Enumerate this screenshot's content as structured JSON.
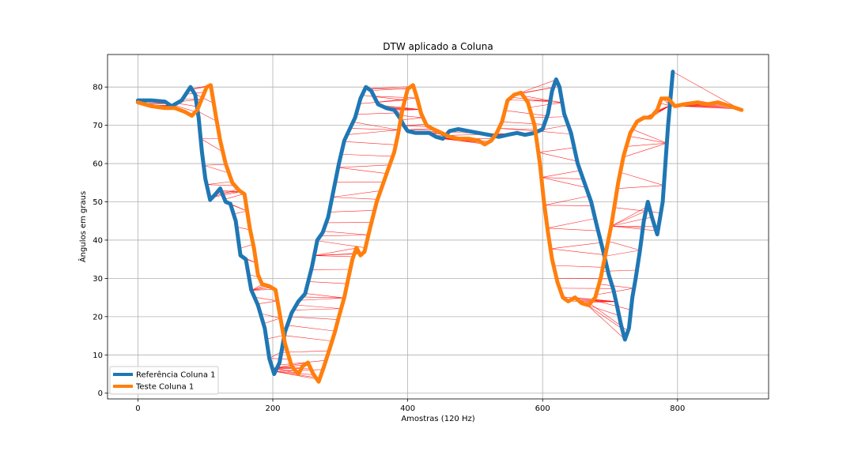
{
  "chart_data": {
    "type": "line",
    "title": "DTW aplicado a Coluna",
    "xlabel": "Amostras (120 Hz)",
    "ylabel": "Ângulos em graus",
    "xlim": [
      -45,
      935
    ],
    "ylim": [
      -1.5,
      88.5
    ],
    "xticks": [
      0,
      200,
      400,
      600,
      800
    ],
    "yticks": [
      0,
      10,
      20,
      30,
      40,
      50,
      60,
      70,
      80
    ],
    "grid": true,
    "legend_position": "lower-left",
    "series": [
      {
        "name": "Referência Coluna 1",
        "color": "#1f77b4",
        "points": [
          [
            0,
            76.5
          ],
          [
            20,
            76.5
          ],
          [
            40,
            76.2
          ],
          [
            50,
            75
          ],
          [
            65,
            76.5
          ],
          [
            78,
            80
          ],
          [
            85,
            78
          ],
          [
            90,
            72
          ],
          [
            95,
            63
          ],
          [
            100,
            56
          ],
          [
            107,
            50.5
          ],
          [
            115,
            52
          ],
          [
            122,
            53.5
          ],
          [
            130,
            50
          ],
          [
            137,
            49.5
          ],
          [
            145,
            45
          ],
          [
            152,
            36
          ],
          [
            160,
            35
          ],
          [
            168,
            27
          ],
          [
            178,
            23
          ],
          [
            188,
            17
          ],
          [
            195,
            9
          ],
          [
            202,
            5
          ],
          [
            210,
            8
          ],
          [
            218,
            16
          ],
          [
            228,
            21
          ],
          [
            238,
            24
          ],
          [
            248,
            26
          ],
          [
            258,
            33
          ],
          [
            266,
            40
          ],
          [
            274,
            42
          ],
          [
            282,
            46
          ],
          [
            290,
            53
          ],
          [
            298,
            60
          ],
          [
            306,
            66
          ],
          [
            314,
            69
          ],
          [
            322,
            72
          ],
          [
            330,
            77
          ],
          [
            338,
            80
          ],
          [
            346,
            79
          ],
          [
            356,
            75.5
          ],
          [
            368,
            74.5
          ],
          [
            380,
            74
          ],
          [
            388,
            72
          ],
          [
            394,
            70
          ],
          [
            400,
            68.5
          ],
          [
            412,
            68
          ],
          [
            422,
            68
          ],
          [
            432,
            68
          ],
          [
            442,
            67
          ],
          [
            452,
            66.5
          ],
          [
            462,
            68.5
          ],
          [
            475,
            69
          ],
          [
            490,
            68.5
          ],
          [
            505,
            68
          ],
          [
            520,
            67.5
          ],
          [
            535,
            67
          ],
          [
            548,
            67.5
          ],
          [
            562,
            68
          ],
          [
            574,
            67.5
          ],
          [
            588,
            68
          ],
          [
            600,
            69
          ],
          [
            608,
            73
          ],
          [
            614,
            79
          ],
          [
            620,
            82
          ],
          [
            625,
            80
          ],
          [
            632,
            73
          ],
          [
            642,
            68
          ],
          [
            652,
            60
          ],
          [
            662,
            55
          ],
          [
            672,
            50
          ],
          [
            680,
            44
          ],
          [
            690,
            37
          ],
          [
            698,
            31
          ],
          [
            705,
            27
          ],
          [
            710,
            23
          ],
          [
            716,
            18
          ],
          [
            722,
            14
          ],
          [
            728,
            17
          ],
          [
            733,
            25
          ],
          [
            738,
            30
          ],
          [
            744,
            37
          ],
          [
            750,
            45
          ],
          [
            756,
            50
          ],
          [
            762,
            46
          ],
          [
            770,
            41.5
          ],
          [
            778,
            50
          ],
          [
            786,
            70
          ],
          [
            793,
            84
          ]
        ]
      },
      {
        "name": "Teste Coluna 1",
        "color": "#ff7f0e",
        "points": [
          [
            0,
            76
          ],
          [
            20,
            75
          ],
          [
            40,
            74.5
          ],
          [
            55,
            74.5
          ],
          [
            70,
            73.5
          ],
          [
            80,
            72.5
          ],
          [
            88,
            74
          ],
          [
            95,
            77
          ],
          [
            102,
            80
          ],
          [
            108,
            80.5
          ],
          [
            115,
            73
          ],
          [
            122,
            66
          ],
          [
            130,
            60
          ],
          [
            140,
            55
          ],
          [
            150,
            53
          ],
          [
            158,
            52
          ],
          [
            166,
            43
          ],
          [
            172,
            38
          ],
          [
            178,
            31
          ],
          [
            184,
            28.5
          ],
          [
            194,
            28
          ],
          [
            204,
            27
          ],
          [
            212,
            19
          ],
          [
            218,
            13
          ],
          [
            228,
            7
          ],
          [
            238,
            5
          ],
          [
            244,
            7
          ],
          [
            252,
            8
          ],
          [
            260,
            5
          ],
          [
            268,
            3
          ],
          [
            276,
            7
          ],
          [
            285,
            12
          ],
          [
            292,
            16
          ],
          [
            298,
            20
          ],
          [
            306,
            25
          ],
          [
            312,
            30
          ],
          [
            318,
            35
          ],
          [
            324,
            38
          ],
          [
            330,
            36
          ],
          [
            336,
            37
          ],
          [
            344,
            43
          ],
          [
            354,
            50
          ],
          [
            364,
            55
          ],
          [
            372,
            59
          ],
          [
            380,
            63
          ],
          [
            386,
            68
          ],
          [
            392,
            74
          ],
          [
            400,
            79.5
          ],
          [
            408,
            80.5
          ],
          [
            414,
            77
          ],
          [
            420,
            73
          ],
          [
            428,
            70
          ],
          [
            438,
            69
          ],
          [
            450,
            68
          ],
          [
            462,
            67
          ],
          [
            475,
            66.5
          ],
          [
            490,
            66.5
          ],
          [
            505,
            66
          ],
          [
            514,
            65
          ],
          [
            524,
            66
          ],
          [
            532,
            68
          ],
          [
            540,
            71
          ],
          [
            548,
            76.5
          ],
          [
            558,
            78
          ],
          [
            568,
            78.5
          ],
          [
            578,
            76
          ],
          [
            588,
            70
          ],
          [
            596,
            60
          ],
          [
            602,
            50
          ],
          [
            608,
            42
          ],
          [
            614,
            35
          ],
          [
            622,
            29
          ],
          [
            630,
            25
          ],
          [
            638,
            24
          ],
          [
            648,
            25
          ],
          [
            658,
            23.5
          ],
          [
            668,
            23
          ],
          [
            678,
            25
          ],
          [
            686,
            30
          ],
          [
            694,
            37
          ],
          [
            702,
            44
          ],
          [
            712,
            55
          ],
          [
            720,
            62
          ],
          [
            730,
            68
          ],
          [
            740,
            71
          ],
          [
            750,
            72
          ],
          [
            760,
            72
          ],
          [
            770,
            74
          ],
          [
            776,
            77
          ],
          [
            786,
            77
          ],
          [
            796,
            75
          ],
          [
            810,
            75.5
          ],
          [
            830,
            76
          ],
          [
            845,
            75.5
          ],
          [
            860,
            76
          ],
          [
            878,
            75
          ],
          [
            895,
            74
          ]
        ]
      }
    ],
    "alignment_color": "#ff0000"
  }
}
